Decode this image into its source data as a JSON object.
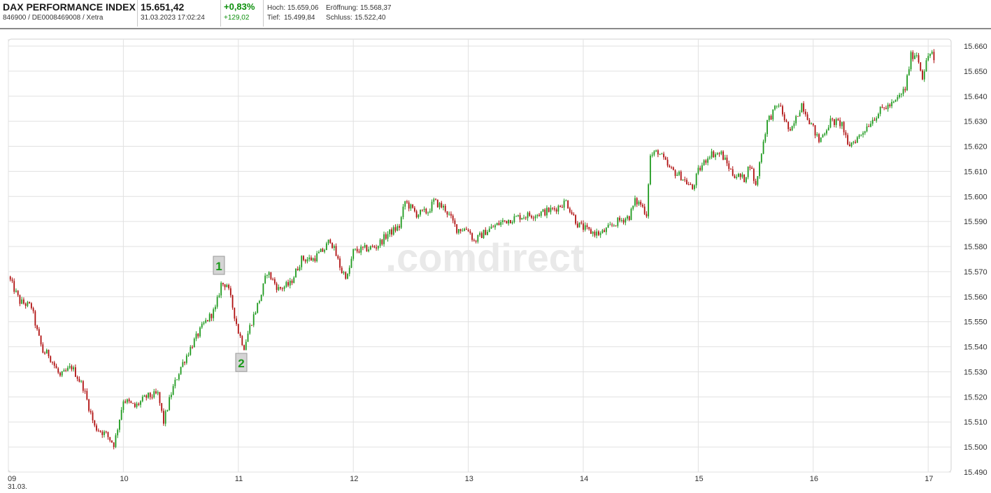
{
  "header": {
    "index_name": "DAX PERFORMANCE INDEX",
    "ids": "846900 / DE0008469008 / Xetra",
    "price": "15.651,42",
    "timestamp": "31.03.2023 17:02:24",
    "change_pct": "+0,83%",
    "change_abs": "+129,02",
    "high_label": "Hoch:",
    "high_value": "15.659,06",
    "open_label": "Eröffnung:",
    "open_value": "15.568,37",
    "low_label": "Tief:",
    "low_value": "15.499,84",
    "close_label": "Schluss:",
    "close_value": "15.522,40",
    "accent_color": "#0b8f0b"
  },
  "watermark": ".comdirect",
  "chart_data": {
    "type": "candlestick",
    "x_tick_labels": [
      "09",
      "10",
      "11",
      "12",
      "13",
      "14",
      "15",
      "16",
      "17"
    ],
    "date_label": "31.03.",
    "xlim_hours": [
      9,
      17.1
    ],
    "y_tick_labels": [
      "15.660",
      "15.650",
      "15.640",
      "15.630",
      "15.620",
      "15.610",
      "15.600",
      "15.590",
      "15.580",
      "15.570",
      "15.560",
      "15.550",
      "15.540",
      "15.530",
      "15.520",
      "15.510",
      "15.500",
      "15.490"
    ],
    "ylim": [
      15490,
      15660
    ],
    "grid": true,
    "up_color": "#1f9a1f",
    "down_color": "#b01010",
    "path": [
      [
        9.0,
        15568
      ],
      [
        9.1,
        15558
      ],
      [
        9.2,
        15556
      ],
      [
        9.25,
        15546
      ],
      [
        9.3,
        15538
      ],
      [
        9.35,
        15537
      ],
      [
        9.45,
        15528
      ],
      [
        9.55,
        15532
      ],
      [
        9.65,
        15524
      ],
      [
        9.75,
        15508
      ],
      [
        9.85,
        15505
      ],
      [
        9.92,
        15501
      ],
      [
        10.0,
        15519
      ],
      [
        10.1,
        15516
      ],
      [
        10.2,
        15520
      ],
      [
        10.3,
        15521
      ],
      [
        10.35,
        15510
      ],
      [
        10.42,
        15522
      ],
      [
        10.5,
        15532
      ],
      [
        10.6,
        15541
      ],
      [
        10.7,
        15549
      ],
      [
        10.8,
        15555
      ],
      [
        10.85,
        15565
      ],
      [
        10.9,
        15565
      ],
      [
        10.95,
        15556
      ],
      [
        11.0,
        15546
      ],
      [
        11.05,
        15540
      ],
      [
        11.1,
        15548
      ],
      [
        11.2,
        15561
      ],
      [
        11.25,
        15570
      ],
      [
        11.35,
        15563
      ],
      [
        11.45,
        15565
      ],
      [
        11.55,
        15575
      ],
      [
        11.65,
        15575
      ],
      [
        11.75,
        15579
      ],
      [
        11.8,
        15583
      ],
      [
        11.9,
        15570
      ],
      [
        11.95,
        15568
      ],
      [
        12.0,
        15578
      ],
      [
        12.1,
        15579
      ],
      [
        12.2,
        15580
      ],
      [
        12.3,
        15585
      ],
      [
        12.4,
        15588
      ],
      [
        12.45,
        15598
      ],
      [
        12.55,
        15593
      ],
      [
        12.65,
        15594
      ],
      [
        12.7,
        15598
      ],
      [
        12.8,
        15595
      ],
      [
        12.9,
        15587
      ],
      [
        13.0,
        15587
      ],
      [
        13.05,
        15582
      ],
      [
        13.15,
        15586
      ],
      [
        13.3,
        15590
      ],
      [
        13.45,
        15592
      ],
      [
        13.6,
        15593
      ],
      [
        13.75,
        15595
      ],
      [
        13.85,
        15598
      ],
      [
        13.95,
        15589
      ],
      [
        14.05,
        15586
      ],
      [
        14.15,
        15585
      ],
      [
        14.3,
        15590
      ],
      [
        14.4,
        15592
      ],
      [
        14.45,
        15598
      ],
      [
        14.5,
        15597
      ],
      [
        14.55,
        15593
      ],
      [
        14.58,
        15616
      ],
      [
        14.65,
        15618
      ],
      [
        14.75,
        15611
      ],
      [
        14.85,
        15608
      ],
      [
        14.95,
        15603
      ],
      [
        15.0,
        15610
      ],
      [
        15.1,
        15617
      ],
      [
        15.2,
        15617
      ],
      [
        15.3,
        15609
      ],
      [
        15.4,
        15607
      ],
      [
        15.45,
        15613
      ],
      [
        15.5,
        15604
      ],
      [
        15.55,
        15618
      ],
      [
        15.6,
        15630
      ],
      [
        15.7,
        15637
      ],
      [
        15.8,
        15625
      ],
      [
        15.9,
        15637
      ],
      [
        15.98,
        15629
      ],
      [
        16.05,
        15622
      ],
      [
        16.15,
        15630
      ],
      [
        16.25,
        15629
      ],
      [
        16.3,
        15620
      ],
      [
        16.4,
        15624
      ],
      [
        16.5,
        15630
      ],
      [
        16.6,
        15635
      ],
      [
        16.7,
        15637
      ],
      [
        16.8,
        15643
      ],
      [
        16.85,
        15656
      ],
      [
        16.9,
        15657
      ],
      [
        16.95,
        15648
      ],
      [
        17.0,
        15656
      ],
      [
        17.03,
        15658
      ],
      [
        17.06,
        15651
      ]
    ]
  }
}
